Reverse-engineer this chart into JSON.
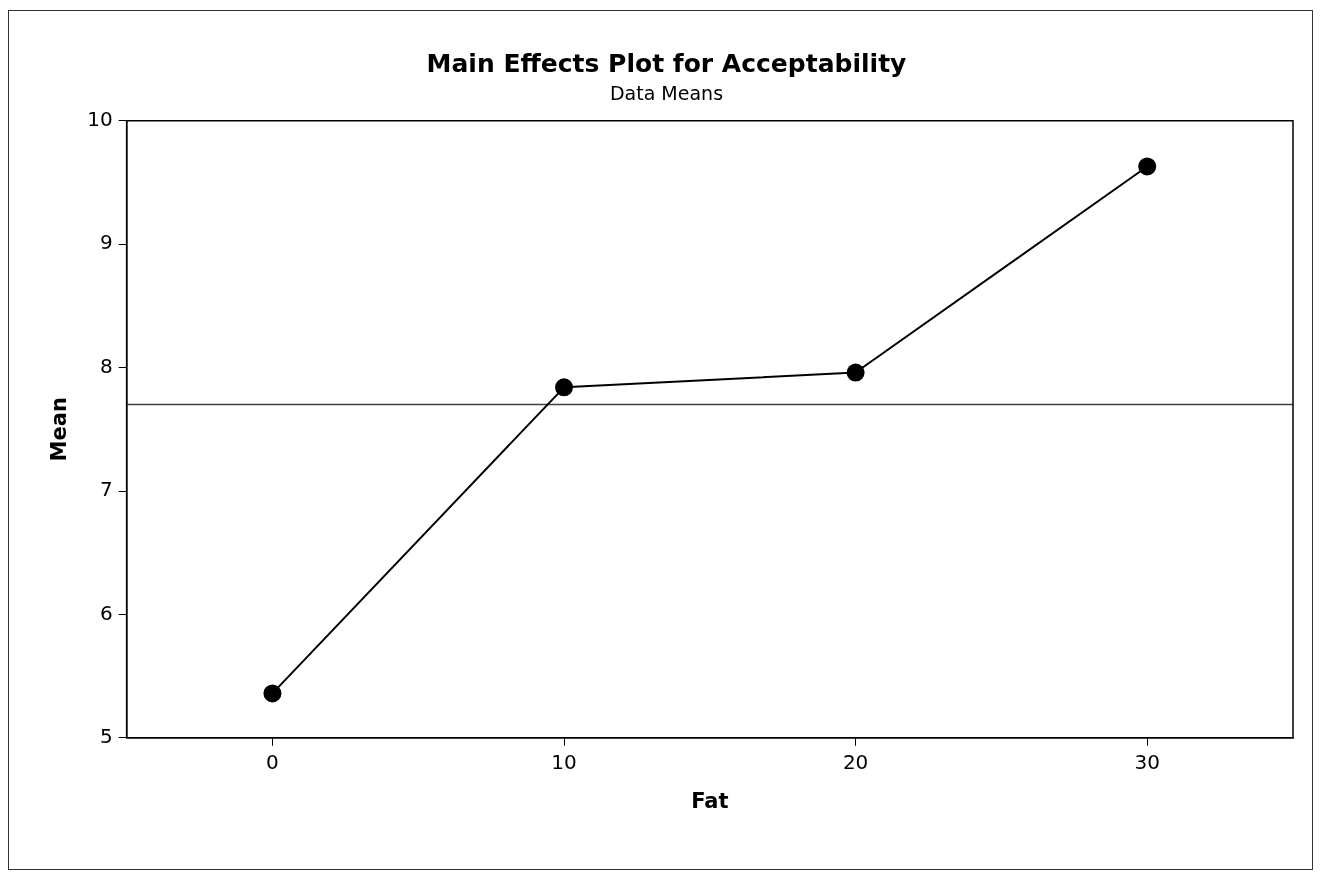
{
  "chart_data": {
    "type": "line",
    "title": "Main Effects Plot for Acceptability",
    "subtitle": "Data Means",
    "xlabel": "Fat",
    "ylabel": "Mean",
    "x": [
      0,
      10,
      20,
      30
    ],
    "series": [
      {
        "color": "#000000",
        "values": [
          5.36,
          7.84,
          7.96,
          9.63
        ]
      }
    ],
    "xlim": [
      -5,
      35
    ],
    "xticks": [
      0,
      10,
      20,
      30
    ],
    "ylim": [
      5,
      10
    ],
    "yticks": [
      5,
      6,
      7,
      8,
      9,
      10
    ],
    "ref_lines": [
      {
        "axis": "y",
        "value": 7.7,
        "color": "#404040"
      }
    ],
    "marker": "circle",
    "line_style": "solid",
    "grid": false,
    "legend": false
  }
}
